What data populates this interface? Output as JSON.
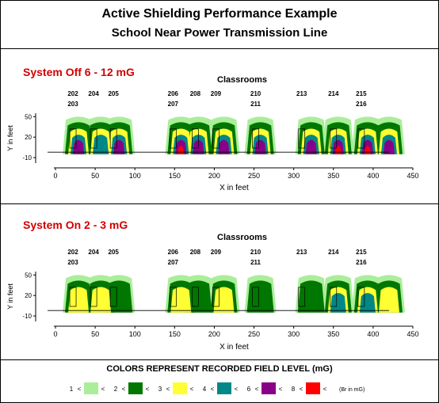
{
  "header": {
    "title": "Active Shielding Performance Example",
    "subtitle": "School Near Power Transmission Line"
  },
  "chart_data": [
    {
      "type": "heatmap",
      "label": "System Off   6 - 12 mG",
      "title": "Classrooms",
      "xlabel": "X in feet",
      "ylabel": "Y in feet",
      "xlim": [
        -15,
        460
      ],
      "ylim": [
        -18,
        55
      ],
      "xticks": [
        0,
        50,
        100,
        150,
        200,
        250,
        300,
        350,
        400,
        450
      ],
      "yticks": [
        -10,
        20,
        50
      ],
      "rooms": [
        {
          "line1": "202",
          "line2": "203",
          "x": 22
        },
        {
          "line1": "204",
          "line2": "",
          "x": 48
        },
        {
          "line1": "205",
          "line2": "",
          "x": 73
        },
        {
          "line1": "206",
          "line2": "207",
          "x": 148
        },
        {
          "line1": "208",
          "line2": "",
          "x": 176
        },
        {
          "line1": "209",
          "line2": "",
          "x": 202
        },
        {
          "line1": "210",
          "line2": "211",
          "x": 252
        },
        {
          "line1": "213",
          "line2": "",
          "x": 310
        },
        {
          "line1": "214",
          "line2": "",
          "x": 350
        },
        {
          "line1": "215",
          "line2": "216",
          "x": 385
        }
      ],
      "peaks": [
        {
          "x": 29,
          "level": 5
        },
        {
          "x": 57,
          "level": 4
        },
        {
          "x": 80,
          "level": 5
        },
        {
          "x": 158,
          "level": 6
        },
        {
          "x": 180,
          "level": 5
        },
        {
          "x": 212,
          "level": 5
        },
        {
          "x": 258,
          "level": 5
        },
        {
          "x": 322,
          "level": 5
        },
        {
          "x": 356,
          "level": 6
        },
        {
          "x": 393,
          "level": 6
        },
        {
          "x": 420,
          "level": 5
        }
      ]
    },
    {
      "type": "heatmap",
      "label": "System On   2 - 3 mG",
      "title": "Classrooms",
      "xlabel": "X in feet",
      "ylabel": "Y in feet",
      "xlim": [
        -15,
        460
      ],
      "ylim": [
        -18,
        55
      ],
      "xticks": [
        0,
        50,
        100,
        150,
        200,
        250,
        300,
        350,
        400,
        450
      ],
      "yticks": [
        -10,
        20,
        50
      ],
      "rooms": [
        {
          "line1": "202",
          "line2": "203",
          "x": 22
        },
        {
          "line1": "204",
          "line2": "",
          "x": 48
        },
        {
          "line1": "205",
          "line2": "",
          "x": 73
        },
        {
          "line1": "206",
          "line2": "207",
          "x": 148
        },
        {
          "line1": "208",
          "line2": "",
          "x": 176
        },
        {
          "line1": "209",
          "line2": "",
          "x": 202
        },
        {
          "line1": "210",
          "line2": "211",
          "x": 252
        },
        {
          "line1": "213",
          "line2": "",
          "x": 310
        },
        {
          "line1": "214",
          "line2": "",
          "x": 350
        },
        {
          "line1": "215",
          "line2": "216",
          "x": 385
        }
      ],
      "peaks": [
        {
          "x": 29,
          "level": 3
        },
        {
          "x": 57,
          "level": 3
        },
        {
          "x": 80,
          "level": 2
        },
        {
          "x": 158,
          "level": 3
        },
        {
          "x": 180,
          "level": 2
        },
        {
          "x": 212,
          "level": 3
        },
        {
          "x": 258,
          "level": 2
        },
        {
          "x": 322,
          "level": 2
        },
        {
          "x": 356,
          "level": 4
        },
        {
          "x": 393,
          "level": 4
        },
        {
          "x": 420,
          "level": 3
        }
      ]
    }
  ],
  "legend": {
    "title": "COLORS REPRESENT RECORDED FIELD LEVEL (mG)",
    "sep": "<",
    "bounds": [
      "1",
      "2",
      "3",
      "4",
      "6",
      "8"
    ],
    "unit_note": "(Br in mG)",
    "colors": [
      "#aaee99",
      "#007700",
      "#ffff33",
      "#008888",
      "#880088",
      "#ff0000"
    ]
  }
}
